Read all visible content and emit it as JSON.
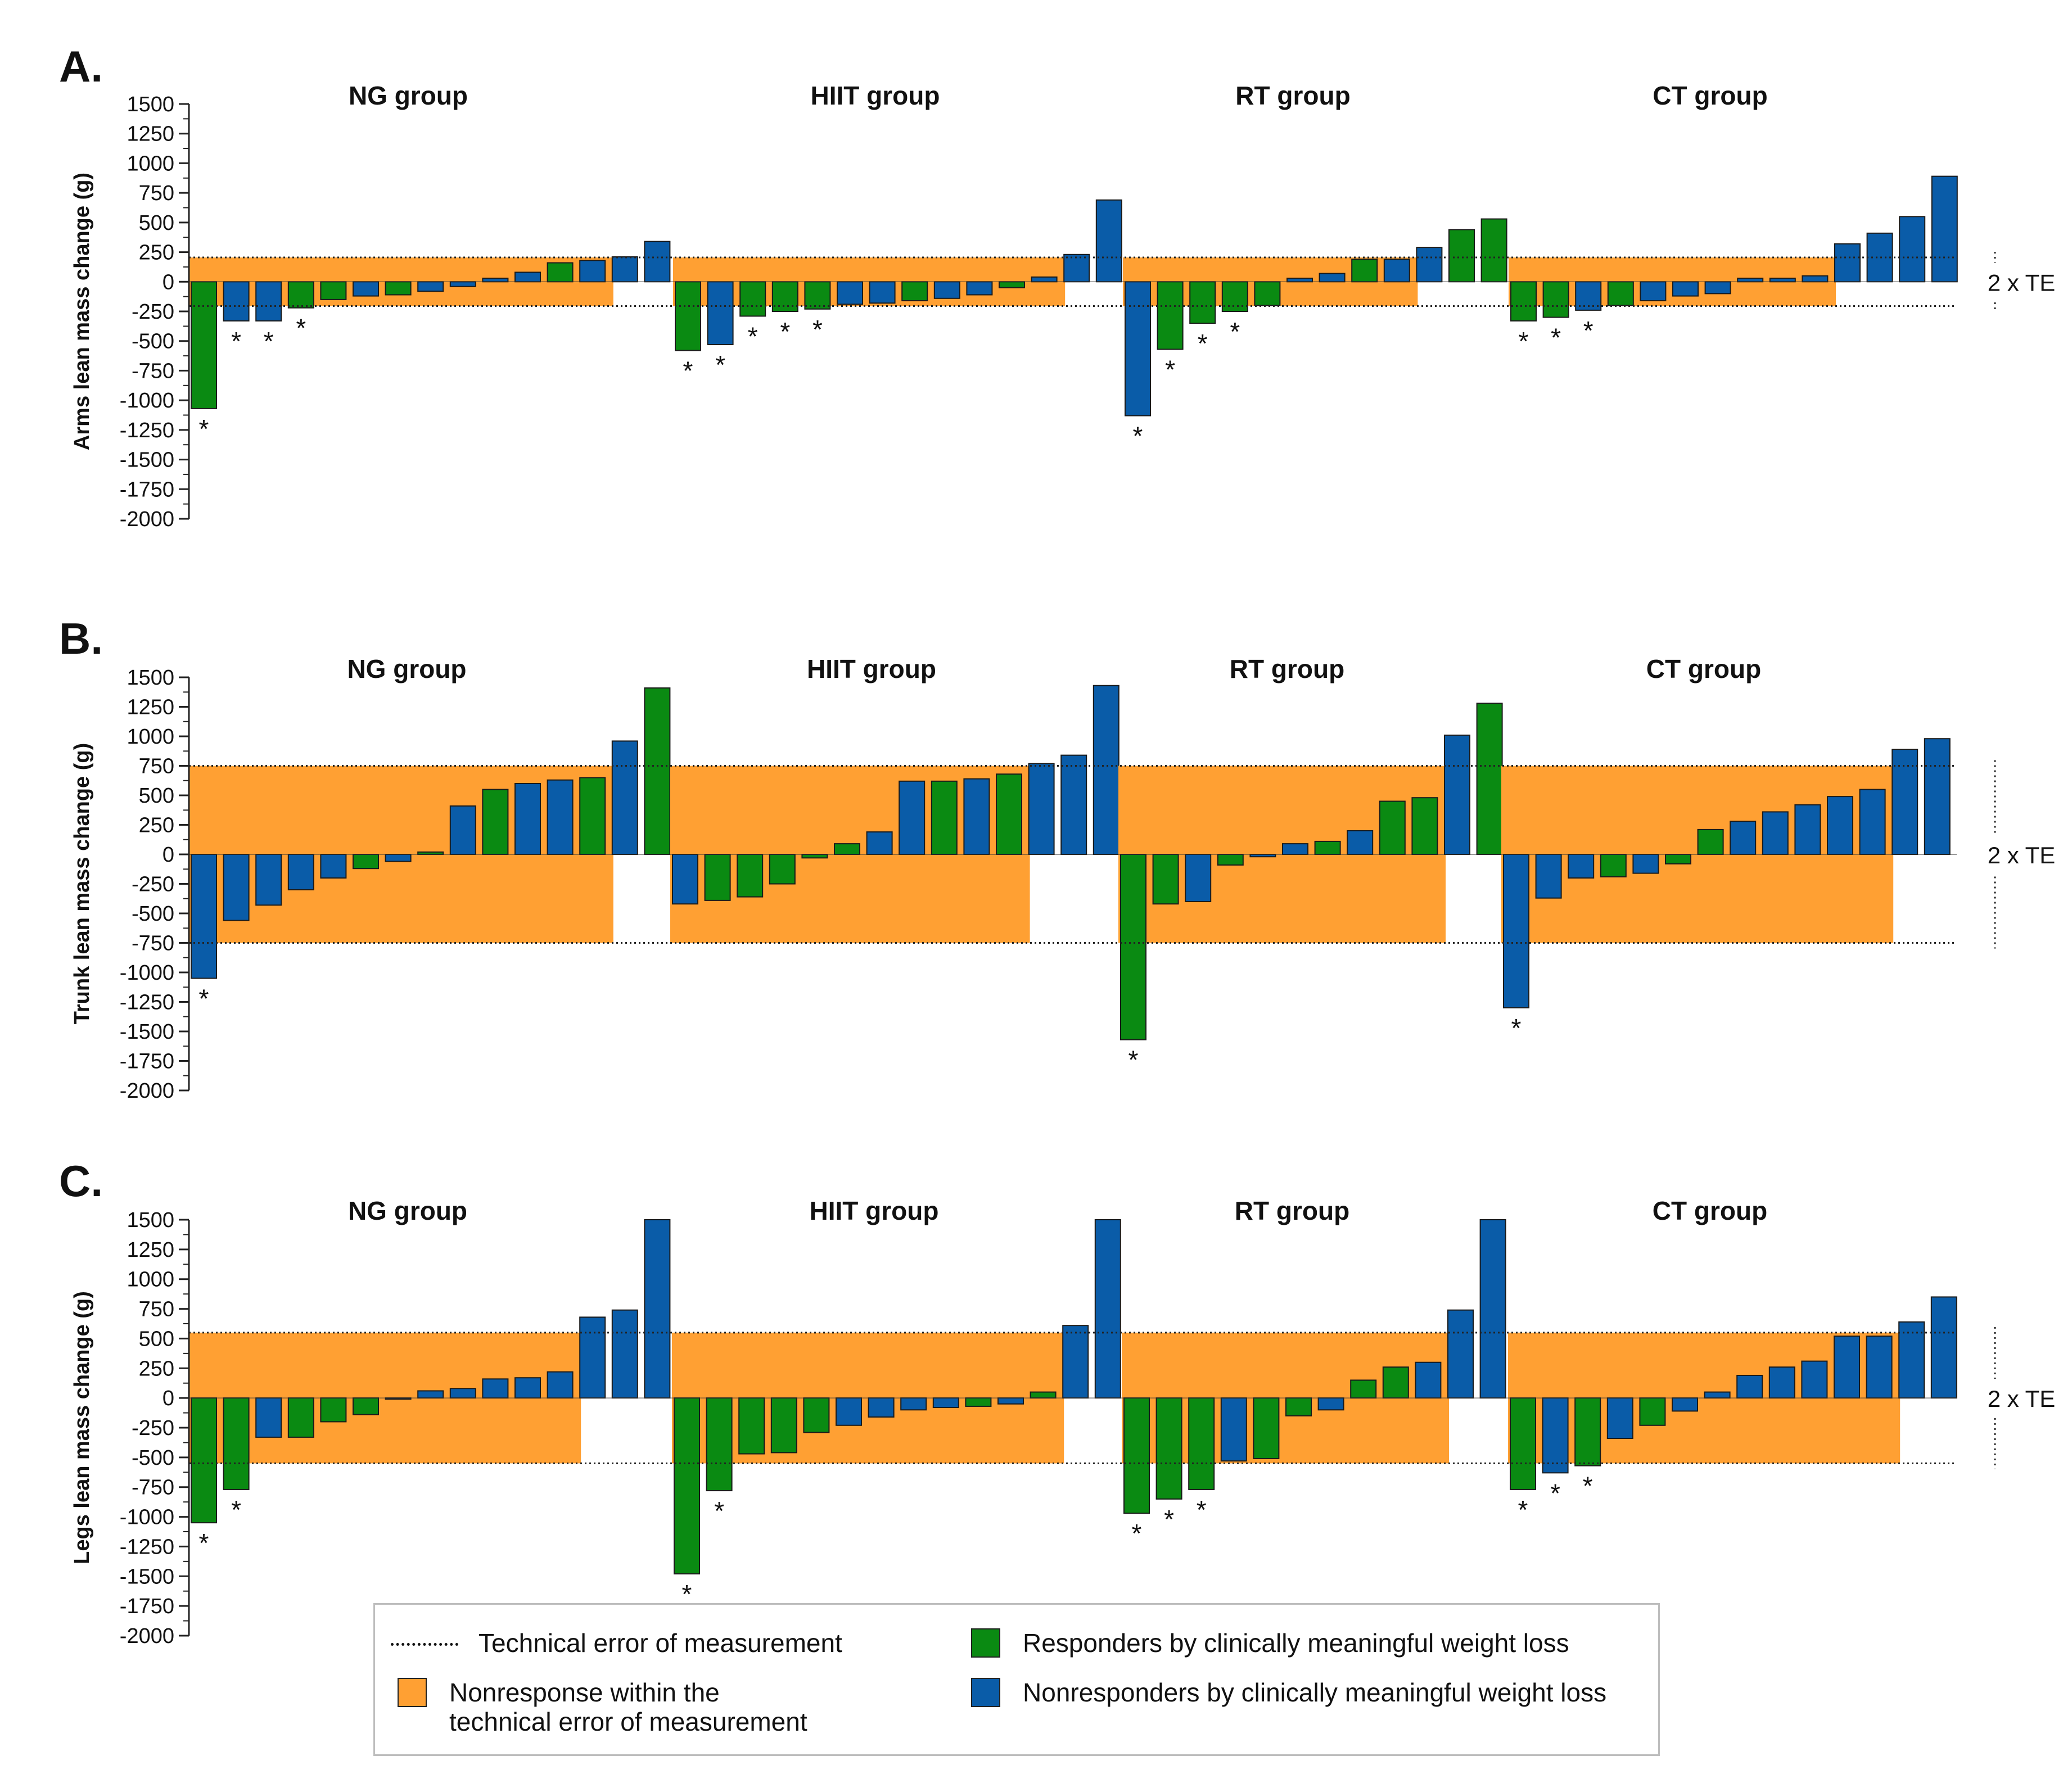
{
  "figure": {
    "y_ticks": [
      1500,
      1250,
      1000,
      750,
      500,
      250,
      0,
      -250,
      -500,
      -750,
      -1000,
      -1250,
      -1500,
      -1750,
      -2000
    ],
    "te_label": "2 x TE",
    "significance_mark": "*"
  },
  "colors": {
    "responder": "#0a8a12",
    "nonresponder": "#0a5ca8",
    "nonresponse_band": "#ffa033",
    "axis": "#222222"
  },
  "legend": {
    "te_line": "Technical error of measurement",
    "band": "Nonresponse within the technical error of measurement",
    "responder": "Responders by clinically meaningful weight loss",
    "nonresponder": "Nonresponders by clinically meaningful weight loss"
  },
  "chart_data": [
    {
      "type": "bar",
      "panel": "A.",
      "ylabel": "Arms lean mass change (g)",
      "ylim": [
        -2000,
        1500
      ],
      "te": 205,
      "groups": [
        {
          "title": "NG group",
          "values": [
            -1070,
            -330,
            -330,
            -220,
            -150,
            -120,
            -110,
            -80,
            -40,
            30,
            80,
            160,
            180,
            210,
            340
          ],
          "kind": [
            "r",
            "n",
            "n",
            "r",
            "r",
            "n",
            "r",
            "n",
            "n",
            "n",
            "n",
            "r",
            "n",
            "n",
            "n"
          ],
          "sig": [
            1,
            1,
            1,
            1,
            0,
            0,
            0,
            0,
            0,
            0,
            0,
            0,
            0,
            0,
            0
          ]
        },
        {
          "title": "HIIT group",
          "values": [
            -580,
            -530,
            -290,
            -250,
            -230,
            -190,
            -180,
            -160,
            -140,
            -110,
            -50,
            40,
            230,
            690
          ],
          "kind": [
            "r",
            "n",
            "r",
            "r",
            "r",
            "n",
            "n",
            "r",
            "n",
            "n",
            "r",
            "n",
            "n",
            "n"
          ],
          "sig": [
            1,
            1,
            1,
            1,
            1,
            0,
            0,
            0,
            0,
            0,
            0,
            0,
            0,
            0
          ]
        },
        {
          "title": "RT group",
          "values": [
            -1130,
            -570,
            -350,
            -250,
            -200,
            30,
            70,
            190,
            190,
            290,
            440,
            530
          ],
          "kind": [
            "n",
            "r",
            "r",
            "r",
            "r",
            "n",
            "n",
            "r",
            "n",
            "n",
            "r",
            "r"
          ],
          "sig": [
            1,
            1,
            1,
            1,
            0,
            0,
            0,
            0,
            0,
            0,
            0,
            0
          ]
        },
        {
          "title": "CT group",
          "values": [
            -330,
            -300,
            -240,
            -200,
            -160,
            -120,
            -100,
            30,
            30,
            50,
            320,
            410,
            550,
            890
          ],
          "kind": [
            "r",
            "r",
            "n",
            "r",
            "n",
            "n",
            "n",
            "n",
            "n",
            "n",
            "n",
            "n",
            "n",
            "n"
          ],
          "sig": [
            1,
            1,
            1,
            0,
            0,
            0,
            0,
            0,
            0,
            0,
            0,
            0,
            0,
            0
          ]
        }
      ]
    },
    {
      "type": "bar",
      "panel": "B.",
      "ylabel": "Trunk lean mass change (g)",
      "ylim": [
        -2000,
        1500
      ],
      "te": 750,
      "groups": [
        {
          "title": "NG group",
          "values": [
            -1050,
            -560,
            -430,
            -300,
            -200,
            -120,
            -60,
            20,
            410,
            550,
            600,
            630,
            650,
            960,
            1410
          ],
          "kind": [
            "n",
            "n",
            "n",
            "n",
            "n",
            "r",
            "n",
            "r",
            "n",
            "r",
            "n",
            "n",
            "r",
            "n",
            "r"
          ],
          "sig": [
            1,
            0,
            0,
            0,
            0,
            0,
            0,
            0,
            0,
            0,
            0,
            0,
            0,
            0,
            0
          ]
        },
        {
          "title": "HIIT group",
          "values": [
            -420,
            -390,
            -360,
            -250,
            -30,
            90,
            190,
            620,
            620,
            640,
            680,
            770,
            840,
            1430
          ],
          "kind": [
            "n",
            "r",
            "r",
            "r",
            "r",
            "r",
            "n",
            "n",
            "r",
            "n",
            "r",
            "n",
            "n",
            "n"
          ],
          "sig": [
            0,
            0,
            0,
            0,
            0,
            0,
            0,
            0,
            0,
            0,
            0,
            0,
            0,
            0
          ]
        },
        {
          "title": "RT group",
          "values": [
            -1570,
            -420,
            -400,
            -90,
            -20,
            90,
            110,
            200,
            450,
            480,
            1010,
            1280
          ],
          "kind": [
            "r",
            "r",
            "n",
            "r",
            "n",
            "n",
            "r",
            "n",
            "r",
            "r",
            "n",
            "r"
          ],
          "sig": [
            1,
            0,
            0,
            0,
            0,
            0,
            0,
            0,
            0,
            0,
            0,
            0
          ]
        },
        {
          "title": "CT group",
          "values": [
            -1300,
            -370,
            -200,
            -190,
            -160,
            -80,
            210,
            280,
            360,
            420,
            490,
            550,
            890,
            980
          ],
          "kind": [
            "n",
            "n",
            "n",
            "r",
            "n",
            "r",
            "r",
            "n",
            "n",
            "n",
            "n",
            "n",
            "n",
            "n"
          ],
          "sig": [
            1,
            0,
            0,
            0,
            0,
            0,
            0,
            0,
            0,
            0,
            0,
            0,
            0,
            0
          ]
        }
      ]
    },
    {
      "type": "bar",
      "panel": "C.",
      "ylabel": "Legs lean mass change (g)",
      "ylim": [
        -2000,
        1500
      ],
      "te": 550,
      "groups": [
        {
          "title": "NG group",
          "values": [
            -1050,
            -770,
            -330,
            -330,
            -200,
            -140,
            -10,
            60,
            80,
            160,
            170,
            220,
            680,
            740,
            1500
          ],
          "kind": [
            "r",
            "r",
            "n",
            "r",
            "r",
            "r",
            "n",
            "n",
            "n",
            "n",
            "n",
            "n",
            "n",
            "n",
            "n"
          ],
          "sig": [
            1,
            1,
            0,
            0,
            0,
            0,
            0,
            0,
            0,
            0,
            0,
            0,
            0,
            0,
            0
          ]
        },
        {
          "title": "HIIT group",
          "values": [
            -1480,
            -780,
            -470,
            -460,
            -290,
            -230,
            -160,
            -100,
            -80,
            -70,
            -50,
            50,
            610,
            1500
          ],
          "kind": [
            "r",
            "r",
            "r",
            "r",
            "r",
            "n",
            "n",
            "n",
            "n",
            "r",
            "n",
            "r",
            "n",
            "n"
          ],
          "sig": [
            1,
            1,
            0,
            0,
            0,
            0,
            0,
            0,
            0,
            0,
            0,
            0,
            0,
            0
          ]
        },
        {
          "title": "RT group",
          "values": [
            -970,
            -850,
            -770,
            -530,
            -510,
            -150,
            -100,
            150,
            260,
            300,
            740,
            1500
          ],
          "kind": [
            "r",
            "r",
            "r",
            "n",
            "r",
            "r",
            "n",
            "r",
            "r",
            "n",
            "n",
            "n"
          ],
          "sig": [
            1,
            1,
            1,
            0,
            0,
            0,
            0,
            0,
            0,
            0,
            0,
            0
          ]
        },
        {
          "title": "CT group",
          "values": [
            -770,
            -630,
            -570,
            -340,
            -230,
            -110,
            50,
            190,
            260,
            310,
            520,
            520,
            640,
            850
          ],
          "kind": [
            "r",
            "n",
            "r",
            "n",
            "r",
            "n",
            "n",
            "n",
            "n",
            "n",
            "n",
            "n",
            "n",
            "n"
          ],
          "sig": [
            1,
            1,
            1,
            0,
            0,
            0,
            0,
            0,
            0,
            0,
            0,
            0,
            0,
            0
          ]
        }
      ]
    }
  ]
}
